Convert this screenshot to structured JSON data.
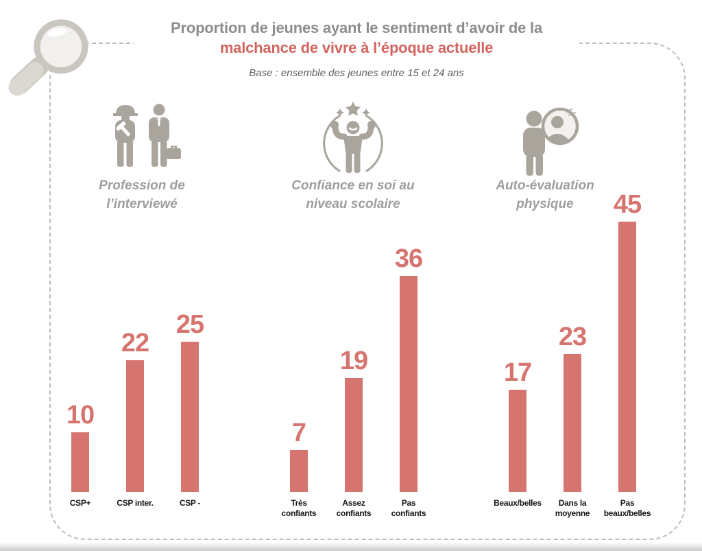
{
  "header": {
    "title_line1": "Proportion de jeunes ayant le sentiment d’avoir de la",
    "title_accent_line": "malchance de vivre à l’époque actuelle",
    "base_note": "Base : ensemble des jeunes entre 15 et 24 ans"
  },
  "colors": {
    "bar_red": "#d6756f",
    "accent_red": "#d2655f",
    "title_gray": "#8d8d8d",
    "subtitle_gray": "#5f5f5f",
    "label_gray": "#9d9d9d",
    "icon_gray": "#a9a59c",
    "dash_gray": "#bcbcbc",
    "category_color": "#151515"
  },
  "icons": {
    "magnifier-icon": "large gray magnifying glass, top-left corner",
    "workers-icon": "construction worker with hammer beside businessman with briefcase",
    "self-confidence-icon": "flexing figure inside circle with star above",
    "mirror-self-image-icon": "person looking at reflection in round mirror"
  },
  "chart_data": {
    "type": "bar",
    "title": "Proportion de jeunes ayant le sentiment d’avoir de la malchance de vivre à l’époque actuelle",
    "subtitle": "Base : ensemble des jeunes entre 15 et 24 ans",
    "ylim": [
      0,
      45
    ],
    "grid": false,
    "legend": false,
    "bar_color": "#d6756f",
    "groups": [
      {
        "label": "Profession de\nl’interviewé",
        "icon": "workers-icon",
        "categories": [
          "CSP+",
          "CSP inter.",
          "CSP -"
        ],
        "values": [
          10,
          22,
          25
        ]
      },
      {
        "label": "Confiance en soi au\nniveau scolaire",
        "icon": "self-confidence-icon",
        "categories": [
          "Très\nconfiants",
          "Assez\nconfiants",
          "Pas\nconfiants"
        ],
        "values": [
          7,
          19,
          36
        ]
      },
      {
        "label": "Auto-évaluation\nphysique",
        "icon": "mirror-self-image-icon",
        "categories": [
          "Beaux/belles",
          "Dans la\nmoyenne",
          "Pas\nbeaux/belles"
        ],
        "values": [
          17,
          23,
          45
        ]
      }
    ]
  }
}
